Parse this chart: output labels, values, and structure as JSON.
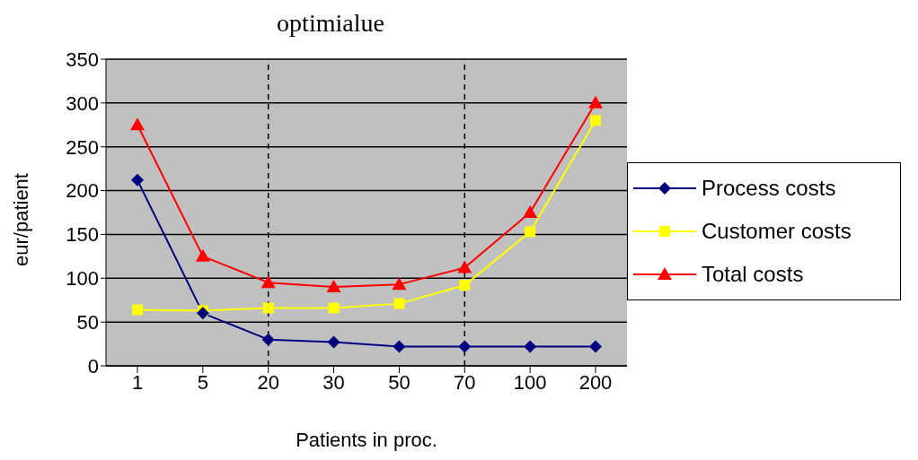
{
  "chart_data": {
    "type": "line",
    "xlabel": "Patients in proc.",
    "ylabel": "eur/patient",
    "categories": [
      "1",
      "5",
      "20",
      "30",
      "50",
      "70",
      "100",
      "200"
    ],
    "series": [
      {
        "name": "Process costs",
        "color": "#000080",
        "marker": "diamond",
        "values": [
          212,
          60,
          30,
          27,
          22,
          22,
          22,
          22
        ]
      },
      {
        "name": "Customer costs",
        "color": "#ffff00",
        "marker": "square",
        "values": [
          64,
          63,
          66,
          66,
          71,
          92,
          153,
          280
        ]
      },
      {
        "name": "Total costs",
        "color": "#ff0000",
        "marker": "triangle",
        "values": [
          275,
          125,
          95,
          90,
          93,
          112,
          175,
          300
        ]
      }
    ],
    "ylim": [
      0,
      350
    ],
    "yticks": [
      0,
      50,
      100,
      150,
      200,
      250,
      300,
      350
    ],
    "grid": "y",
    "legend": "right",
    "annotations": [
      "optimialue"
    ],
    "ref_lines": [
      {
        "axis": "x",
        "value": "20",
        "line_style": "dashed",
        "color": "#000000"
      },
      {
        "axis": "x",
        "value": "70",
        "line_style": "dashed",
        "color": "#000000"
      }
    ]
  }
}
